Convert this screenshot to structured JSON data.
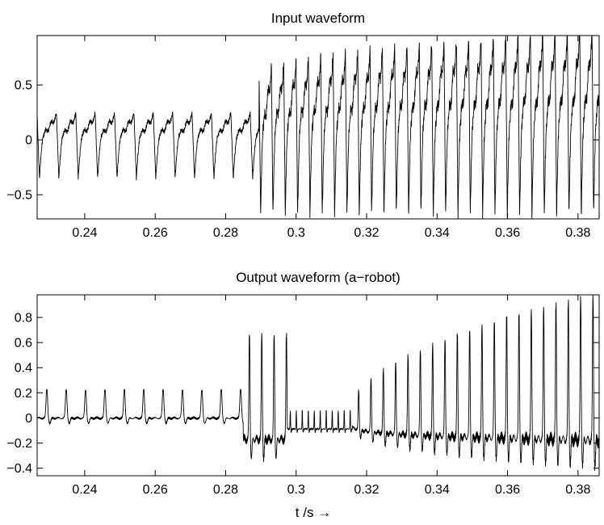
{
  "chart_data": [
    {
      "type": "line",
      "id": "top",
      "title": "Input waveform",
      "xlabel": "",
      "ylabel": "",
      "xlim": [
        0.2265,
        0.386
      ],
      "ylim": [
        -0.72,
        0.95
      ],
      "xticks": [
        0.24,
        0.26,
        0.28,
        0.3,
        0.32,
        0.34,
        0.36,
        0.38
      ],
      "xtick_labels": [
        "0.24",
        "0.26",
        "0.28",
        "0.3",
        "0.32",
        "0.34",
        "0.36",
        "0.38"
      ],
      "yticks": [
        -0.5,
        0,
        0.5
      ],
      "ytick_labels": [
        "−0.5",
        "0",
        "0.5"
      ],
      "grid": false,
      "series": [
        {
          "name": "input",
          "description": "quasi-periodic signal; period ~0.0055 s, amplitude about +0.22/-0.35 before t=0.2895, then period ~0.0035 s with amplitude growing to about +0.95/-0.70",
          "segments": [
            {
              "t_start": 0.2265,
              "t_end": 0.2895,
              "period": 0.0055,
              "max": 0.22,
              "min": -0.35
            },
            {
              "t_start": 0.2895,
              "t_end": 0.386,
              "period": 0.0035,
              "max_start": 0.55,
              "max_end": 0.95,
              "min_start": -0.68,
              "min_end": -0.7
            }
          ]
        }
      ]
    },
    {
      "type": "line",
      "id": "bottom",
      "title": "Output waveform (a−robot)",
      "xlabel": "t /s →",
      "ylabel": "",
      "xlim": [
        0.2265,
        0.386
      ],
      "ylim": [
        -0.46,
        0.98
      ],
      "xticks": [
        0.24,
        0.26,
        0.28,
        0.3,
        0.32,
        0.34,
        0.36,
        0.38
      ],
      "xtick_labels": [
        "0.24",
        "0.26",
        "0.28",
        "0.3",
        "0.32",
        "0.34",
        "0.36",
        "0.38"
      ],
      "yticks": [
        -0.4,
        -0.2,
        0,
        0.2,
        0.4,
        0.6,
        0.8
      ],
      "ytick_labels": [
        "−0.4",
        "−0.2",
        "0",
        "0.2",
        "0.4",
        "0.6",
        "0.8"
      ],
      "grid": false,
      "series": [
        {
          "name": "output",
          "description": "narrow pulses of ~0.22 every 0.0055 s until t=0.285, burst to ~0.65/-0.35 near 0.29-0.30, small oscillation 0.30-0.315, then pulse train with period ~0.0035 s growing to ~0.98 peak and -0.43 trough",
          "segments": [
            {
              "t_start": 0.2265,
              "t_end": 0.285,
              "period": 0.0055,
              "max": 0.22,
              "min": -0.05
            },
            {
              "t_start": 0.285,
              "t_end": 0.2975,
              "period": 0.0035,
              "max": 0.65,
              "min": -0.35
            },
            {
              "t_start": 0.2975,
              "t_end": 0.316,
              "period": 0.0017,
              "max": 0.06,
              "min": -0.12
            },
            {
              "t_start": 0.316,
              "t_end": 0.386,
              "period": 0.0035,
              "max_start": 0.1,
              "max_end": 0.98,
              "min_start": -0.1,
              "min_end": -0.43
            }
          ]
        }
      ]
    }
  ]
}
